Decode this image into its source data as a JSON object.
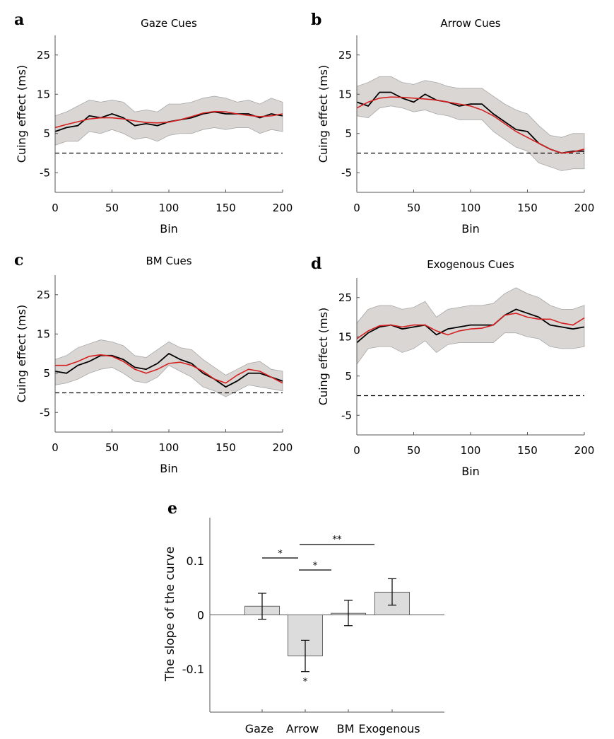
{
  "chart_data": [
    {
      "panel": "a",
      "type": "line",
      "title": "Gaze Cues",
      "xlabel": "Bin",
      "ylabel": "Cuing effect (ms)",
      "xlim": [
        0,
        200
      ],
      "ylim": [
        -10,
        30
      ],
      "xticks": [
        "0",
        "50",
        "100",
        "150",
        "200"
      ],
      "yticks": [
        "-5",
        "5",
        "15",
        "25"
      ],
      "reference_line": 0,
      "colors": {
        "mean": "#000000",
        "fit": "#d62020",
        "band": "#d9d6d4"
      },
      "x": [
        0,
        10,
        20,
        30,
        40,
        50,
        60,
        70,
        80,
        90,
        100,
        110,
        120,
        130,
        140,
        150,
        160,
        170,
        180,
        190,
        200
      ],
      "mean": [
        5.5,
        6.5,
        7,
        9.5,
        9,
        10,
        9,
        7,
        7.5,
        7,
        8,
        8.5,
        9,
        10,
        10.5,
        10,
        10,
        10,
        9,
        10,
        9.5
      ],
      "fit": [
        6.5,
        7.3,
        8,
        8.7,
        9,
        9,
        8.7,
        8.2,
        7.8,
        7.7,
        7.9,
        8.5,
        9.3,
        10.2,
        10.6,
        10.5,
        10,
        9.6,
        9.3,
        9.5,
        10
      ],
      "band_upper": [
        9.5,
        10.5,
        12,
        13.5,
        13,
        13.5,
        13,
        10.5,
        11,
        10.5,
        12.5,
        12.5,
        13,
        14,
        14.5,
        14,
        13,
        13.5,
        12.5,
        14,
        13
      ],
      "band_lower": [
        2,
        3,
        3,
        5.5,
        5,
        6,
        5,
        3.5,
        4,
        3,
        4.5,
        5,
        5,
        6,
        6.5,
        6,
        6.5,
        6.5,
        5,
        6,
        5.5
      ]
    },
    {
      "panel": "b",
      "type": "line",
      "title": "Arrow Cues",
      "xlabel": "Bin",
      "ylabel": "Cuing effect (ms)",
      "xlim": [
        0,
        200
      ],
      "ylim": [
        -10,
        30
      ],
      "xticks": [
        "0",
        "50",
        "100",
        "150",
        "200"
      ],
      "yticks": [
        "-5",
        "5",
        "15",
        "25"
      ],
      "reference_line": 0,
      "colors": {
        "mean": "#000000",
        "fit": "#d62020",
        "band": "#d9d6d4"
      },
      "x": [
        0,
        10,
        20,
        30,
        40,
        50,
        60,
        70,
        80,
        90,
        100,
        110,
        120,
        130,
        140,
        150,
        160,
        170,
        180,
        190,
        200
      ],
      "mean": [
        13,
        12,
        15.5,
        15.5,
        14,
        13,
        15,
        13.5,
        13,
        12,
        12.5,
        12.5,
        10,
        8,
        6,
        5.5,
        2.5,
        1,
        0,
        0.5,
        0.5
      ],
      "fit": [
        11.5,
        13,
        14,
        14.3,
        14.2,
        14,
        13.8,
        13.5,
        13,
        12.5,
        12,
        11,
        9.5,
        7.5,
        5.5,
        4,
        2.5,
        1,
        0,
        0.3,
        1
      ],
      "band_upper": [
        17,
        18,
        19.5,
        19.5,
        18,
        17.5,
        18.5,
        18,
        17,
        16.5,
        16.5,
        16.5,
        14.5,
        12.5,
        11,
        10,
        7,
        4.5,
        4,
        5,
        5
      ],
      "band_lower": [
        9.5,
        9,
        11.5,
        12,
        11.5,
        10.5,
        11,
        10,
        9.5,
        8.5,
        8.5,
        8.5,
        5.5,
        3.5,
        1.5,
        0.5,
        -2.5,
        -3.5,
        -4.5,
        -4,
        -4
      ]
    },
    {
      "panel": "c",
      "type": "line",
      "title": "BM Cues",
      "xlabel": "Bin",
      "ylabel": "Cuing effect (ms)",
      "xlim": [
        0,
        200
      ],
      "ylim": [
        -10,
        30
      ],
      "xticks": [
        "0",
        "50",
        "100",
        "150",
        "200"
      ],
      "yticks": [
        "-5",
        "5",
        "15",
        "25"
      ],
      "reference_line": 0,
      "colors": {
        "mean": "#000000",
        "fit": "#d62020",
        "band": "#d9d6d4"
      },
      "x": [
        0,
        10,
        20,
        30,
        40,
        50,
        60,
        70,
        80,
        90,
        100,
        110,
        120,
        130,
        140,
        150,
        160,
        170,
        180,
        190,
        200
      ],
      "mean": [
        5.5,
        5,
        7,
        8,
        9.5,
        9.5,
        8.5,
        6.5,
        6,
        7.5,
        10,
        8.5,
        7.5,
        5,
        3.5,
        1.5,
        3,
        5,
        5,
        4,
        3
      ],
      "fit": [
        7,
        7,
        8,
        9.3,
        9.7,
        9.3,
        8,
        6,
        5,
        6,
        7.5,
        7.8,
        7,
        5.5,
        3.5,
        2.5,
        4.5,
        6,
        5.5,
        4,
        2.5
      ],
      "band_upper": [
        8.5,
        9.5,
        11.5,
        12.5,
        13.5,
        13,
        12,
        9.5,
        9,
        11,
        13,
        11.5,
        11,
        8.5,
        6.5,
        4.5,
        6,
        7.5,
        8,
        6,
        5.5
      ],
      "band_lower": [
        2,
        2.5,
        3.5,
        5,
        6,
        6.5,
        5,
        3,
        2.5,
        4,
        7,
        5.5,
        4,
        1.5,
        0.5,
        -1,
        0.5,
        2,
        1.5,
        1,
        0.5
      ]
    },
    {
      "panel": "d",
      "type": "line",
      "title": "Exogenous Cues",
      "xlabel": "Bin",
      "ylabel": "Cuing effect (ms)",
      "xlim": [
        0,
        200
      ],
      "ylim": [
        -10,
        30
      ],
      "xticks": [
        "0",
        "50",
        "100",
        "150",
        "200"
      ],
      "yticks": [
        "-5",
        "5",
        "15",
        "25"
      ],
      "reference_line": 0,
      "colors": {
        "mean": "#000000",
        "fit": "#d62020",
        "band": "#d9d6d4"
      },
      "x": [
        0,
        10,
        20,
        30,
        40,
        50,
        60,
        70,
        80,
        90,
        100,
        110,
        120,
        130,
        140,
        150,
        160,
        170,
        180,
        190,
        200
      ],
      "mean": [
        13.5,
        16,
        17.5,
        18,
        17,
        17.5,
        18,
        15.5,
        17,
        17.5,
        18,
        18,
        18,
        20.5,
        22,
        21,
        20,
        18,
        17.5,
        17,
        17.5
      ],
      "fit": [
        14.5,
        16.5,
        17.8,
        18,
        17.5,
        18,
        18,
        16.5,
        15.5,
        16.5,
        17,
        17.2,
        18,
        20.5,
        21,
        20,
        19.5,
        19.5,
        18.5,
        18,
        19.8
      ],
      "band_upper": [
        18.5,
        22,
        23,
        23,
        22,
        22.5,
        24,
        20,
        22,
        22.5,
        23,
        23,
        23.5,
        26,
        27.5,
        26,
        25,
        23,
        22,
        22,
        23
      ],
      "band_lower": [
        8,
        12,
        12.5,
        12.5,
        11,
        12,
        14,
        11,
        13,
        13.5,
        13.5,
        13.5,
        13.5,
        16,
        16,
        15,
        14.5,
        12.5,
        12,
        12,
        12.5
      ]
    },
    {
      "panel": "e",
      "type": "bar",
      "title": "",
      "xlabel": "",
      "ylabel": "The slope of the curve",
      "ylim": [
        -0.18,
        0.18
      ],
      "yticks": [
        "-0.1",
        "0",
        "0.1"
      ],
      "categories": [
        "Gaze",
        "Arrow",
        "BM",
        "Exogenous"
      ],
      "values": [
        0.016,
        -0.076,
        0.003,
        0.042
      ],
      "error_low": [
        -0.008,
        -0.105,
        -0.02,
        0.018
      ],
      "error_high": [
        0.04,
        -0.047,
        0.027,
        0.067
      ],
      "bar_color": "#dcdcdc",
      "significance": [
        {
          "from": "Gaze",
          "to": "Arrow",
          "label": "*"
        },
        {
          "from": "Arrow",
          "to": "BM",
          "label": "*"
        },
        {
          "from": "Arrow",
          "to": "Exogenous",
          "label": "**"
        }
      ],
      "bar_annotations": [
        {
          "category": "Arrow",
          "label": "*"
        }
      ]
    }
  ]
}
